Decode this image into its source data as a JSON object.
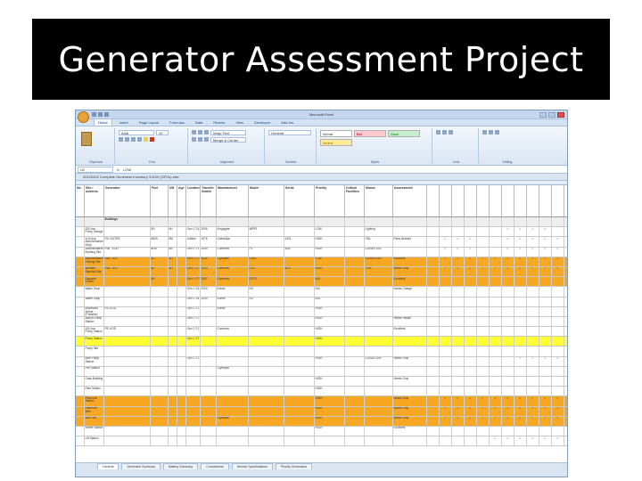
{
  "slide": {
    "title": "Generator Assessment Project"
  },
  "excel": {
    "window_title": "Microsoft Excel",
    "tabs": [
      "Home",
      "Insert",
      "Page Layout",
      "Formulas",
      "Data",
      "Review",
      "View",
      "Developer",
      "Add-Ins"
    ],
    "active_tab": "Home",
    "ribbon": {
      "clipboard_label": "Clipboard",
      "font_label": "Font",
      "alignment_label": "Alignment",
      "number_label": "Number",
      "styles_label": "Styles",
      "cells_label": "Cells",
      "editing_label": "Editing",
      "font_name": "Arial",
      "font_size": "10",
      "wrap_text": "Wrap Text",
      "merge_center": "Merge & Center",
      "number_format": "General",
      "style_normal": "Normal",
      "style_bad": "Bad",
      "style_good": "Good",
      "style_neutral": "Neutral"
    },
    "name_box": "U2",
    "formula_value": "LOW",
    "document_title": "20120402 Complete Generator Inventory 3.0OH (OFCs).xlsx",
    "columns": [
      "No.",
      "Site / Address",
      "Generator",
      "Fuel",
      "kW",
      "Age",
      "Location",
      "Transfer Switch",
      "Manufacturer",
      "Model",
      "Serial",
      "Priority",
      "Critical Facilities",
      "Status",
      "Assessment"
    ],
    "section_label": "Buildings",
    "rows": [
      {
        "style": "white",
        "cells": [
          "",
          "200 Ave - Pump Garage",
          "",
          "8H",
          "6H",
          "",
          "Gen 1 '03",
          "2006",
          "Kingsgate",
          "WRP1",
          "",
          "LOW",
          "",
          "Lighting",
          ""
        ],
        "checks": [
          0,
          0,
          0,
          0,
          0,
          0,
          1,
          1,
          1,
          1,
          0,
          0,
          0,
          0,
          0
        ]
      },
      {
        "style": "white",
        "cells": [
          "",
          "11th Ave Admin/Maintenance Shop",
          "FB, NOTER",
          "6839",
          "8M",
          "",
          "Jubilee",
          "1976",
          "Caterpillar",
          "",
          "1401",
          "HIGH",
          "",
          "ITAL",
          "Parts Needed"
        ],
        "checks": [
          0,
          1,
          1,
          1,
          0,
          0,
          1,
          1,
          1,
          1,
          1,
          1,
          1,
          1,
          1
        ]
      },
      {
        "style": "white",
        "cells": [
          "",
          "Administrative Building Site",
          "Pub., KOD",
          "8HD",
          "8N",
          "",
          "Gen 1 '07",
          "2009",
          "Cummins",
          "P2",
          "4087",
          "HIGH",
          "",
          "CONDITION",
          ""
        ],
        "checks": [
          0,
          1,
          1,
          1,
          0,
          0,
          1,
          1,
          1,
          1,
          1,
          1,
          1,
          1,
          1
        ]
      },
      {
        "style": "orange",
        "cells": [
          "",
          "Administrative Parking Site",
          "Pub., ROI",
          "8D",
          "8H",
          "",
          "Gen 1 '07",
          "2006",
          "Olympian",
          "G'MO",
          "",
          "LOW",
          "",
          "CONDITION",
          "Excellent"
        ],
        "checks": [
          0,
          1,
          1,
          1,
          1,
          1,
          1,
          1,
          1,
          1,
          1,
          1,
          1,
          1,
          1
        ]
      },
      {
        "style": "orange",
        "cells": [
          "",
          "Western Standby Site",
          "Pub., ROI",
          "8D",
          "8H",
          "",
          "Gen 1 '07",
          "1993",
          "Cummins",
          "D-ST",
          "4DX",
          "HIGH",
          "",
          "TPAL",
          "Needs Only"
        ],
        "checks": [
          0,
          1,
          1,
          1,
          1,
          1,
          1,
          1,
          1,
          1,
          1,
          1,
          1,
          1,
          1
        ]
      },
      {
        "style": "orange",
        "cells": [
          "",
          "Dispatch Center",
          "",
          "8H",
          "",
          "",
          "Gen 1 '07",
          "1997",
          "Cummins",
          "DFTE",
          "",
          "N/A",
          "",
          "",
          "Excellent"
        ],
        "checks": [
          0,
          0,
          0,
          0,
          0,
          0,
          0,
          0,
          0,
          0,
          0,
          0,
          0,
          0,
          0
        ]
      },
      {
        "style": "white",
        "cells": [
          "",
          "Water Shop",
          "",
          "",
          "",
          "",
          "Gen 1 '04",
          "2000",
          "Kohler",
          "KD",
          "",
          "N/A",
          "",
          "",
          "Needs Charge"
        ],
        "checks": [
          0,
          0,
          0,
          0,
          0,
          0,
          0,
          0,
          0,
          0,
          0,
          0,
          0,
          0,
          0
        ]
      },
      {
        "style": "white",
        "cells": [
          "",
          "Water Shop",
          "",
          "",
          "",
          "",
          "Gen 1 '04",
          "2000",
          "Kohler",
          "KD",
          "",
          "N/A",
          "",
          "",
          ""
        ],
        "checks": [
          0,
          0,
          0,
          0,
          0,
          0,
          0,
          0,
          0,
          0,
          0,
          0,
          0,
          0,
          0
        ]
      },
      {
        "style": "white",
        "cells": [
          "",
          "Boulevard Sewer (Portable)",
          "FB, KOD",
          "",
          "",
          "",
          "Gen 1 '07",
          "",
          "Kohler",
          "",
          "",
          "HIGH",
          "",
          "",
          ""
        ],
        "checks": [
          0,
          0,
          0,
          0,
          0,
          0,
          0,
          0,
          0,
          0,
          0,
          0,
          0,
          0,
          0
        ]
      },
      {
        "style": "white",
        "cells": [
          "",
          "Airport Pump Station",
          "",
          "",
          "",
          "",
          "Gen 1 '07",
          "",
          "",
          "",
          "",
          "HIGH",
          "",
          "",
          "Needs Repair"
        ],
        "checks": [
          0,
          0,
          0,
          0,
          0,
          0,
          0,
          0,
          0,
          0,
          0,
          0,
          0,
          0,
          0
        ]
      },
      {
        "style": "white",
        "cells": [
          "",
          "200 Ave Pump Station",
          "FB, KOD",
          "",
          "",
          "",
          "Gen 1 '07",
          "",
          "Cummins",
          "",
          "",
          "HIGH",
          "",
          "",
          "Excellent"
        ],
        "checks": [
          0,
          0,
          0,
          0,
          0,
          0,
          0,
          0,
          0,
          0,
          0,
          0,
          0,
          0,
          0
        ]
      },
      {
        "style": "yellow",
        "cells": [
          "",
          "Pump Station",
          "",
          "",
          "",
          "",
          "Gen 1 '07",
          "",
          "",
          "",
          "",
          "HIGH",
          "",
          "",
          ""
        ],
        "checks": [
          0,
          0,
          0,
          0,
          0,
          0,
          0,
          0,
          0,
          0,
          0,
          0,
          0,
          0,
          0
        ]
      },
      {
        "style": "white",
        "cells": [
          "",
          "Pump Site",
          "",
          "",
          "",
          "",
          "",
          "",
          "",
          "",
          "",
          "",
          "",
          "",
          ""
        ],
        "checks": [
          0,
          0,
          0,
          0,
          0,
          0,
          0,
          0,
          0,
          0,
          0,
          0,
          0,
          0,
          0
        ]
      },
      {
        "style": "white",
        "cells": [
          "",
          "Bluff Pump Station",
          "",
          "",
          "",
          "",
          "Gen 1 '07",
          "",
          "",
          "",
          "",
          "HIGH",
          "",
          "CONDITION",
          "Needs Only"
        ],
        "checks": [
          0,
          0,
          0,
          0,
          0,
          0,
          0,
          1,
          1,
          1,
          1,
          1,
          1,
          1,
          1
        ]
      },
      {
        "style": "white",
        "cells": [
          "",
          "Fire Station",
          "",
          "",
          "",
          "",
          "",
          "",
          "Olympian",
          "",
          "",
          "",
          "",
          "",
          ""
        ],
        "checks": [
          0,
          0,
          0,
          0,
          0,
          0,
          0,
          0,
          0,
          0,
          0,
          0,
          0,
          0,
          0
        ]
      },
      {
        "style": "white",
        "cells": [
          "",
          "Oaks Building",
          "",
          "",
          "",
          "",
          "",
          "",
          "",
          "",
          "",
          "HIGH",
          "",
          "",
          "Needs Only"
        ],
        "checks": [
          0,
          0,
          0,
          0,
          0,
          0,
          0,
          0,
          0,
          0,
          0,
          0,
          0,
          0,
          0
        ]
      },
      {
        "style": "white",
        "cells": [
          "",
          "Park Station",
          "",
          "",
          "",
          "",
          "",
          "",
          "",
          "",
          "",
          "HIGH",
          "",
          "",
          ""
        ],
        "checks": [
          0,
          0,
          0,
          0,
          0,
          0,
          0,
          0,
          0,
          0,
          0,
          0,
          0,
          0,
          0
        ]
      },
      {
        "style": "orange",
        "cells": [
          "",
          "Reservoir Station",
          "",
          "",
          "",
          "",
          "",
          "",
          "",
          "",
          "",
          "HIGH",
          "",
          "",
          "Needs Only"
        ],
        "checks": [
          0,
          1,
          1,
          1,
          1,
          1,
          1,
          1,
          1,
          1,
          1,
          1,
          1,
          1,
          1
        ]
      },
      {
        "style": "orange",
        "cells": [
          "",
          "Reservoir Well",
          "",
          "",
          "",
          "",
          "",
          "",
          "",
          "",
          "",
          "HIGH",
          "",
          "",
          "Needs Only"
        ],
        "checks": [
          0,
          1,
          1,
          1,
          1,
          1,
          1,
          1,
          1,
          1,
          1,
          1,
          1,
          1,
          1
        ]
      },
      {
        "style": "orange",
        "cells": [
          "",
          "Well Site",
          "",
          "",
          "",
          "",
          "",
          "",
          "Olympian",
          "",
          "",
          "HIGH",
          "",
          "",
          "Needs Only"
        ],
        "checks": [
          0,
          1,
          1,
          1,
          1,
          1,
          1,
          1,
          1,
          1,
          1,
          1,
          1,
          1,
          1
        ]
      },
      {
        "style": "white",
        "cells": [
          "",
          "Sewer Station",
          "",
          "",
          "",
          "",
          "",
          "",
          "",
          "",
          "",
          "HIGH",
          "",
          "",
          "Excellent"
        ],
        "checks": [
          0,
          0,
          0,
          0,
          0,
          0,
          0,
          0,
          0,
          0,
          0,
          0,
          0,
          0,
          0
        ]
      },
      {
        "style": "white",
        "cells": [
          "",
          "Lift Station",
          "",
          "",
          "",
          "",
          "",
          "",
          "",
          "",
          "",
          "",
          "",
          "",
          ""
        ],
        "checks": [
          0,
          0,
          0,
          0,
          0,
          1,
          1,
          1,
          1,
          1,
          1,
          0,
          0,
          0,
          0
        ]
      }
    ],
    "sheet_tabs": [
      "General",
      "Generator Summary",
      "Battery Summary",
      "Connections",
      "Service Specifications",
      "Priority Generators"
    ],
    "active_sheet": "General"
  }
}
